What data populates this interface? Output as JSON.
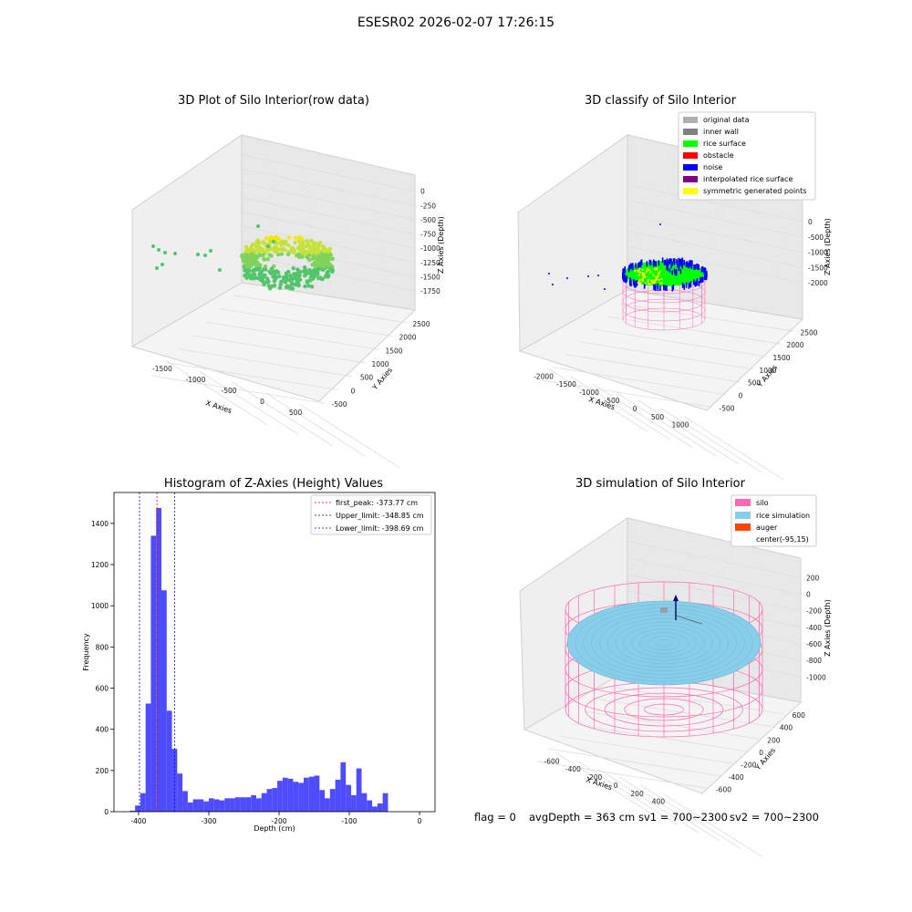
{
  "suptitle": "ESESR02 2026-02-07 17:26:15",
  "status": {
    "flag": "flag = 0",
    "avg_depth": "avgDepth = 363 cm",
    "sv1": "sv1 = 700~2300",
    "sv2": "sv2 = 700~2300"
  },
  "colors": {
    "raw_gradient": [
      "#f3e60a",
      "#c4e23a",
      "#7fd35a",
      "#52c56a"
    ],
    "original_data": "#b0b0b0",
    "inner_wall": "#808080",
    "rice_surface": "#00ff00",
    "obstacle": "#ff0000",
    "noise": "#0000ff",
    "interpolated": "#800080",
    "symmetric": "#ffff00",
    "silo": "#ff69b4",
    "rice_simulation": "#87ceeb",
    "auger": "#ff4500",
    "hist_bar": "#4d4dff"
  },
  "chart_data": [
    {
      "type": "scatter",
      "title": "3D Plot of Silo Interior(row data)",
      "xlabel": "X Axies",
      "ylabel": "Y Axies",
      "zlabel": "Z Axies (Depth)",
      "x_ticks": [
        "-1500",
        "-1000",
        "-500",
        "0",
        "500"
      ],
      "y_ticks": [
        "-500",
        "0",
        "500",
        "1000",
        "1500",
        "2000",
        "2500"
      ],
      "z_ticks": [
        "0",
        "-250",
        "-500",
        "-750",
        "-1000",
        "-1250",
        "-1500",
        "-1750"
      ],
      "xlim": [
        -1800,
        600
      ],
      "ylim": [
        -600,
        2700
      ],
      "zlim": [
        -1900,
        100
      ]
    },
    {
      "type": "scatter",
      "title": "3D classify of Silo Interior",
      "xlabel": "X Axies",
      "ylabel": "Y Axies",
      "zlabel": "Z Axies (Depth)",
      "x_ticks": [
        "-2000",
        "-1500",
        "-1000",
        "-500",
        "0",
        "500",
        "1000"
      ],
      "y_ticks": [
        "-500",
        "0",
        "500",
        "1000",
        "1500",
        "2000",
        "2500"
      ],
      "z_ticks": [
        "0",
        "-500",
        "-1000",
        "-1500",
        "-2000"
      ],
      "legend": [
        "original data",
        "inner wall",
        "rice surface",
        "obstacle",
        "noise",
        "interpolated rice surface",
        "symmetric generated points"
      ],
      "legend_placement": "top-right"
    },
    {
      "type": "bar",
      "title": "Histogram of Z-Axies (Height) Values",
      "xlabel": "Depth (cm)",
      "ylabel": "Frequency",
      "xlim": [
        -435,
        22
      ],
      "ylim": [
        0,
        1550
      ],
      "x_ticks": [
        -400,
        -300,
        -200,
        -100,
        0
      ],
      "y_ticks": [
        0,
        200,
        400,
        600,
        800,
        1000,
        1200,
        1400
      ],
      "bin_width": 7.5,
      "bin_starts": [
        -412.5,
        -405,
        -397.5,
        -390,
        -382.5,
        -375,
        -367.5,
        -360,
        -352.5,
        -345,
        -337.5,
        -330,
        -322.5,
        -315,
        -307.5,
        -300,
        -292.5,
        -285,
        -277.5,
        -270,
        -262.5,
        -255,
        -247.5,
        -240,
        -232.5,
        -225,
        -217.5,
        -210,
        -202.5,
        -195,
        -187.5,
        -180,
        -172.5,
        -165,
        -157.5,
        -150,
        -142.5,
        -135,
        -127.5,
        -120,
        -112.5,
        -105,
        -97.5,
        -90,
        -82.5,
        -75,
        -67.5,
        -60,
        -52.5,
        -45,
        -37.5,
        -30,
        -22.5,
        -15,
        -7.5,
        0
      ],
      "values": [
        5,
        30,
        90,
        525,
        1340,
        1475,
        1075,
        490,
        305,
        185,
        100,
        45,
        60,
        60,
        50,
        65,
        60,
        55,
        65,
        65,
        70,
        70,
        70,
        80,
        65,
        90,
        110,
        115,
        150,
        165,
        160,
        145,
        140,
        165,
        170,
        175,
        105,
        65,
        110,
        155,
        240,
        130,
        80,
        210,
        90,
        55,
        25,
        40,
        90,
        0,
        0,
        0,
        0,
        0,
        0,
        0
      ],
      "vlines": [
        {
          "label": "first_peak: -373.77 cm",
          "x": -373.77,
          "color": "#ff0000"
        },
        {
          "label": "Upper_limit: -348.85 cm",
          "x": -348.85,
          "color": "#0000ff"
        },
        {
          "label": "Lower_limit: -398.69 cm",
          "x": -398.69,
          "color": "#0000ff"
        }
      ],
      "legend_placement": "top-right"
    },
    {
      "type": "surface",
      "title": "3D simulation of Silo Interior",
      "xlabel": "X Axies",
      "ylabel": "Y Axies",
      "zlabel": "Z Axies (Depth)",
      "x_ticks": [
        "-600",
        "-400",
        "-200",
        "0",
        "200",
        "400"
      ],
      "y_ticks": [
        "-600",
        "-400",
        "-200",
        "0",
        "200",
        "400",
        "600"
      ],
      "z_ticks": [
        "200",
        "0",
        "-200",
        "-400",
        "-600",
        "-800",
        "-1000"
      ],
      "legend": [
        "silo",
        "rice simulation",
        "auger",
        "center(-95,15)"
      ],
      "legend_placement": "top-right"
    }
  ]
}
